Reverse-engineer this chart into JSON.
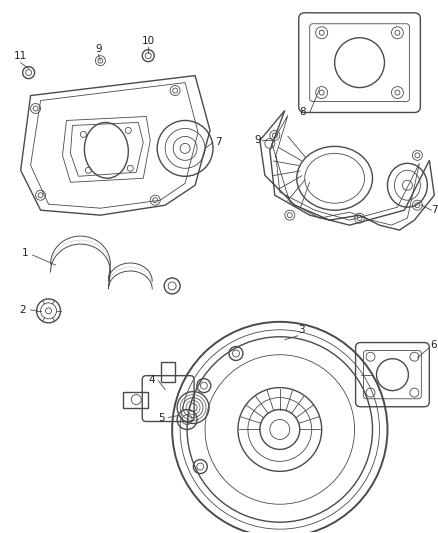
{
  "bg_color": "#ffffff",
  "line_color": "#4a4a4a",
  "label_color": "#222222",
  "fig_width": 4.38,
  "fig_height": 5.33,
  "dpi": 100,
  "label_size": 7.5
}
